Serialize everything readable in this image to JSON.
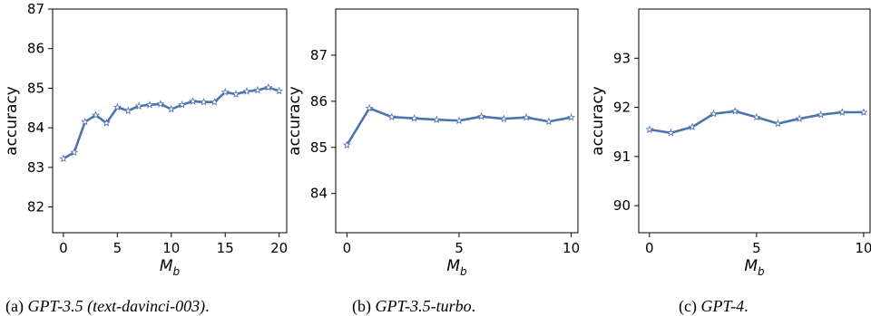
{
  "chart_data": [
    {
      "type": "line",
      "xlabel": "M",
      "xlabel_sub": "b",
      "ylabel": "accuracy",
      "xlim": [
        -1,
        20.7
      ],
      "ylim": [
        81.35,
        87.0
      ],
      "xticks": [
        0,
        5,
        10,
        15,
        20
      ],
      "yticks": [
        82,
        83,
        84,
        85,
        86,
        87
      ],
      "color": "#4c72b0",
      "marker": "star",
      "x": [
        0,
        1,
        2,
        3,
        4,
        5,
        6,
        7,
        8,
        9,
        10,
        11,
        12,
        13,
        14,
        15,
        16,
        17,
        18,
        19,
        20
      ],
      "y": [
        83.22,
        83.38,
        84.15,
        84.32,
        84.12,
        84.52,
        84.43,
        84.55,
        84.58,
        84.6,
        84.47,
        84.58,
        84.67,
        84.65,
        84.65,
        84.9,
        84.85,
        84.92,
        84.95,
        85.02,
        84.93
      ]
    },
    {
      "type": "line",
      "xlabel": "M",
      "xlabel_sub": "b",
      "ylabel": "accuracy",
      "xlim": [
        -0.5,
        10.3
      ],
      "ylim": [
        83.15,
        88.0
      ],
      "xticks": [
        0,
        5,
        10
      ],
      "yticks": [
        84,
        85,
        86,
        87
      ],
      "color": "#4c72b0",
      "marker": "star",
      "x": [
        0,
        1,
        2,
        3,
        4,
        5,
        6,
        7,
        8,
        9,
        10
      ],
      "y": [
        85.05,
        85.85,
        85.66,
        85.63,
        85.6,
        85.58,
        85.67,
        85.62,
        85.65,
        85.56,
        85.65
      ]
    },
    {
      "type": "line",
      "xlabel": "M",
      "xlabel_sub": "b",
      "ylabel": "accuracy",
      "xlim": [
        -0.5,
        10.3
      ],
      "ylim": [
        89.45,
        94.0
      ],
      "xticks": [
        0,
        5,
        10
      ],
      "yticks": [
        90,
        91,
        92,
        93
      ],
      "color": "#4c72b0",
      "marker": "star",
      "x": [
        0,
        1,
        2,
        3,
        4,
        5,
        6,
        7,
        8,
        9,
        10
      ],
      "y": [
        91.55,
        91.48,
        91.6,
        91.87,
        91.92,
        91.8,
        91.67,
        91.77,
        91.85,
        91.9,
        91.9
      ]
    }
  ],
  "captions": [
    {
      "label": "(a)",
      "name": "GPT-3.5 (text-davinci-003)",
      "end": "."
    },
    {
      "label": "(b)",
      "name": "GPT-3.5-turbo",
      "end": "."
    },
    {
      "label": "(c)",
      "name": "GPT-4",
      "end": "."
    }
  ]
}
